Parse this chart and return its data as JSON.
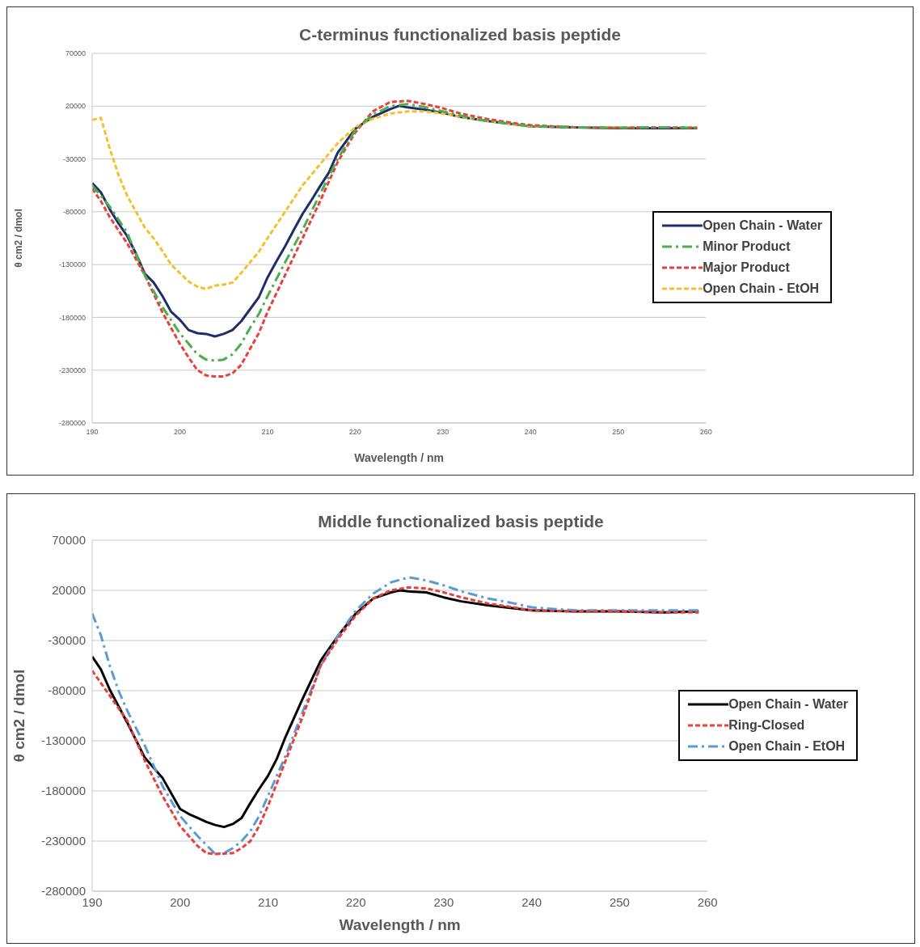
{
  "chart_data": [
    {
      "type": "line",
      "title": "C-terminus functionalized basis peptide",
      "xlabel": "Wavelength / nm",
      "ylabel": "θ cm2 / dmol",
      "xlim": [
        190,
        260
      ],
      "xticks": [
        190,
        200,
        210,
        220,
        230,
        240,
        250,
        260
      ],
      "ylim": [
        -280000,
        70000
      ],
      "yticks": [
        -280000,
        -230000,
        -180000,
        -130000,
        -80000,
        -30000,
        20000,
        70000
      ],
      "grid": "y",
      "legend": "right",
      "marker": "none",
      "series": [
        {
          "name": "Open Chain - Water",
          "color": "#1f2d6b",
          "line_style": "solid",
          "x": [
            190,
            191,
            192,
            193,
            194,
            195,
            196,
            197,
            198,
            199,
            200,
            201,
            202,
            203,
            204,
            205,
            206,
            207,
            208,
            209,
            210,
            211,
            212,
            213,
            214,
            215,
            216,
            217,
            218,
            219,
            220,
            222,
            224,
            225,
            226,
            228,
            230,
            232,
            235,
            238,
            240,
            245,
            250,
            255,
            259
          ],
          "values": [
            -52700,
            -61700,
            -77500,
            -91000,
            -103100,
            -119700,
            -138500,
            -146800,
            -159600,
            -174600,
            -182200,
            -192000,
            -195000,
            -195700,
            -198000,
            -195700,
            -192000,
            -183700,
            -172400,
            -161100,
            -142300,
            -127200,
            -112900,
            -97100,
            -82000,
            -69200,
            -55700,
            -42900,
            -24100,
            -12800,
            -1500,
            9800,
            17300,
            20300,
            18800,
            16600,
            13600,
            9800,
            6000,
            3000,
            800,
            0,
            -800,
            -800,
            -800
          ]
        },
        {
          "name": "Minor Product",
          "color": "#4cae4c",
          "line_style": "dashdot",
          "x": [
            190,
            192,
            194,
            196,
            198,
            200,
            201,
            202,
            203,
            204,
            205,
            206,
            207,
            208,
            209,
            210,
            212,
            214,
            216,
            218,
            220,
            222,
            224,
            226,
            228,
            230,
            232,
            235,
            238,
            240,
            245,
            250,
            255,
            259
          ],
          "values": [
            -55000,
            -75000,
            -100000,
            -140000,
            -170000,
            -195000,
            -205000,
            -215000,
            -220000,
            -221000,
            -220000,
            -215000,
            -205000,
            -190000,
            -177000,
            -160000,
            -128000,
            -97000,
            -63000,
            -30000,
            -3000,
            12000,
            20000,
            22000,
            19000,
            15000,
            11000,
            6000,
            3000,
            1000,
            0,
            -500,
            0,
            -500
          ]
        },
        {
          "name": "Major Product",
          "color": "#e8413c",
          "line_style": "dashed",
          "x": [
            190,
            191,
            192,
            194,
            196,
            198,
            200,
            201,
            202,
            203,
            204,
            205,
            206,
            207,
            208,
            209,
            210,
            212,
            214,
            216,
            218,
            220,
            222,
            224,
            226,
            228,
            230,
            232,
            235,
            238,
            240,
            245,
            250,
            255,
            259
          ],
          "values": [
            -58000,
            -70000,
            -85000,
            -110000,
            -140000,
            -175000,
            -205000,
            -218000,
            -230000,
            -235000,
            -236000,
            -236000,
            -233000,
            -225000,
            -210000,
            -195000,
            -175000,
            -140000,
            -105000,
            -70000,
            -33000,
            -5000,
            15000,
            24000,
            25000,
            22000,
            18000,
            13000,
            8000,
            4000,
            2000,
            0,
            -500,
            0,
            -500
          ]
        },
        {
          "name": "Open Chain - EtOH",
          "color": "#f5c02e",
          "line_style": "dashed",
          "x": [
            190,
            191,
            192,
            193,
            194,
            196,
            197,
            198,
            199,
            200,
            201,
            202,
            203,
            204,
            205,
            206,
            207,
            208,
            209,
            210,
            212,
            214,
            216,
            218,
            220,
            222,
            224,
            226,
            228,
            230,
            232,
            235,
            238,
            240,
            245,
            250,
            255,
            259
          ],
          "values": [
            7000,
            9000,
            -20000,
            -45000,
            -65000,
            -95000,
            -105000,
            -117000,
            -130000,
            -138000,
            -146000,
            -151000,
            -153000,
            -150000,
            -149000,
            -147000,
            -138000,
            -128000,
            -118000,
            -105000,
            -80000,
            -55000,
            -35000,
            -15000,
            0,
            8000,
            13000,
            15000,
            15000,
            13000,
            10000,
            6000,
            3000,
            1000,
            0,
            0,
            0,
            0
          ]
        }
      ]
    },
    {
      "type": "line",
      "title": "Middle functionalized basis peptide",
      "xlabel": "Wavelength / nm",
      "ylabel": "θ cm2 / dmol",
      "xlim": [
        190,
        260
      ],
      "xticks": [
        190,
        200,
        210,
        220,
        230,
        240,
        250,
        260
      ],
      "ylim": [
        -280000,
        70000
      ],
      "yticks": [
        -280000,
        -230000,
        -180000,
        -130000,
        -80000,
        -30000,
        20000,
        70000
      ],
      "grid": "y",
      "legend": "right",
      "marker": "none",
      "series": [
        {
          "name": "Open Chain - Water",
          "color": "#000000",
          "line_style": "solid",
          "x": [
            190,
            191,
            192,
            194,
            196,
            198,
            200,
            201,
            202,
            203,
            204,
            205,
            206,
            207,
            208,
            209,
            210,
            211,
            212,
            214,
            216,
            218,
            220,
            222,
            224,
            225,
            226,
            228,
            230,
            232,
            235,
            238,
            240,
            245,
            250,
            255,
            259
          ],
          "values": [
            -46000,
            -59000,
            -79000,
            -112000,
            -147000,
            -167000,
            -198000,
            -203000,
            -207000,
            -211000,
            -214000,
            -216000,
            -213000,
            -207000,
            -192000,
            -178000,
            -165000,
            -148000,
            -126000,
            -87000,
            -50000,
            -25000,
            -3000,
            12000,
            18000,
            20000,
            19000,
            18000,
            13000,
            9000,
            5000,
            2000,
            0,
            -1000,
            -1000,
            -2000,
            -1000
          ]
        },
        {
          "name": "Ring-Closed",
          "color": "#e8413c",
          "line_style": "dashed",
          "x": [
            190,
            192,
            194,
            196,
            198,
            200,
            202,
            203,
            204,
            206,
            207,
            208,
            209,
            210,
            212,
            214,
            216,
            218,
            220,
            222,
            224,
            226,
            228,
            230,
            232,
            235,
            238,
            240,
            245,
            250,
            255,
            259
          ],
          "values": [
            -60000,
            -85000,
            -110000,
            -150000,
            -185000,
            -215000,
            -235000,
            -242000,
            -243000,
            -242000,
            -237000,
            -230000,
            -215000,
            -195000,
            -150000,
            -105000,
            -55000,
            -28000,
            -5000,
            12000,
            20000,
            23000,
            22000,
            18000,
            13000,
            7000,
            3000,
            0,
            -1000,
            -1000,
            -2000,
            -2000
          ]
        },
        {
          "name": "Open Chain - EtOH",
          "color": "#5b9bd5",
          "line_style": "dashdot",
          "x": [
            190,
            191,
            192,
            193,
            194,
            196,
            198,
            200,
            202,
            204,
            205,
            206,
            207,
            208,
            209,
            210,
            212,
            214,
            216,
            218,
            220,
            222,
            224,
            226,
            228,
            230,
            232,
            235,
            238,
            240,
            245,
            250,
            255,
            259
          ],
          "values": [
            -3000,
            -25000,
            -55000,
            -80000,
            -100000,
            -135000,
            -175000,
            -205000,
            -225000,
            -243000,
            -242000,
            -237000,
            -230000,
            -220000,
            -205000,
            -185000,
            -145000,
            -100000,
            -55000,
            -25000,
            0,
            17000,
            28000,
            33000,
            30000,
            25000,
            19000,
            12000,
            7000,
            3000,
            0,
            0,
            0,
            0
          ]
        }
      ]
    }
  ]
}
